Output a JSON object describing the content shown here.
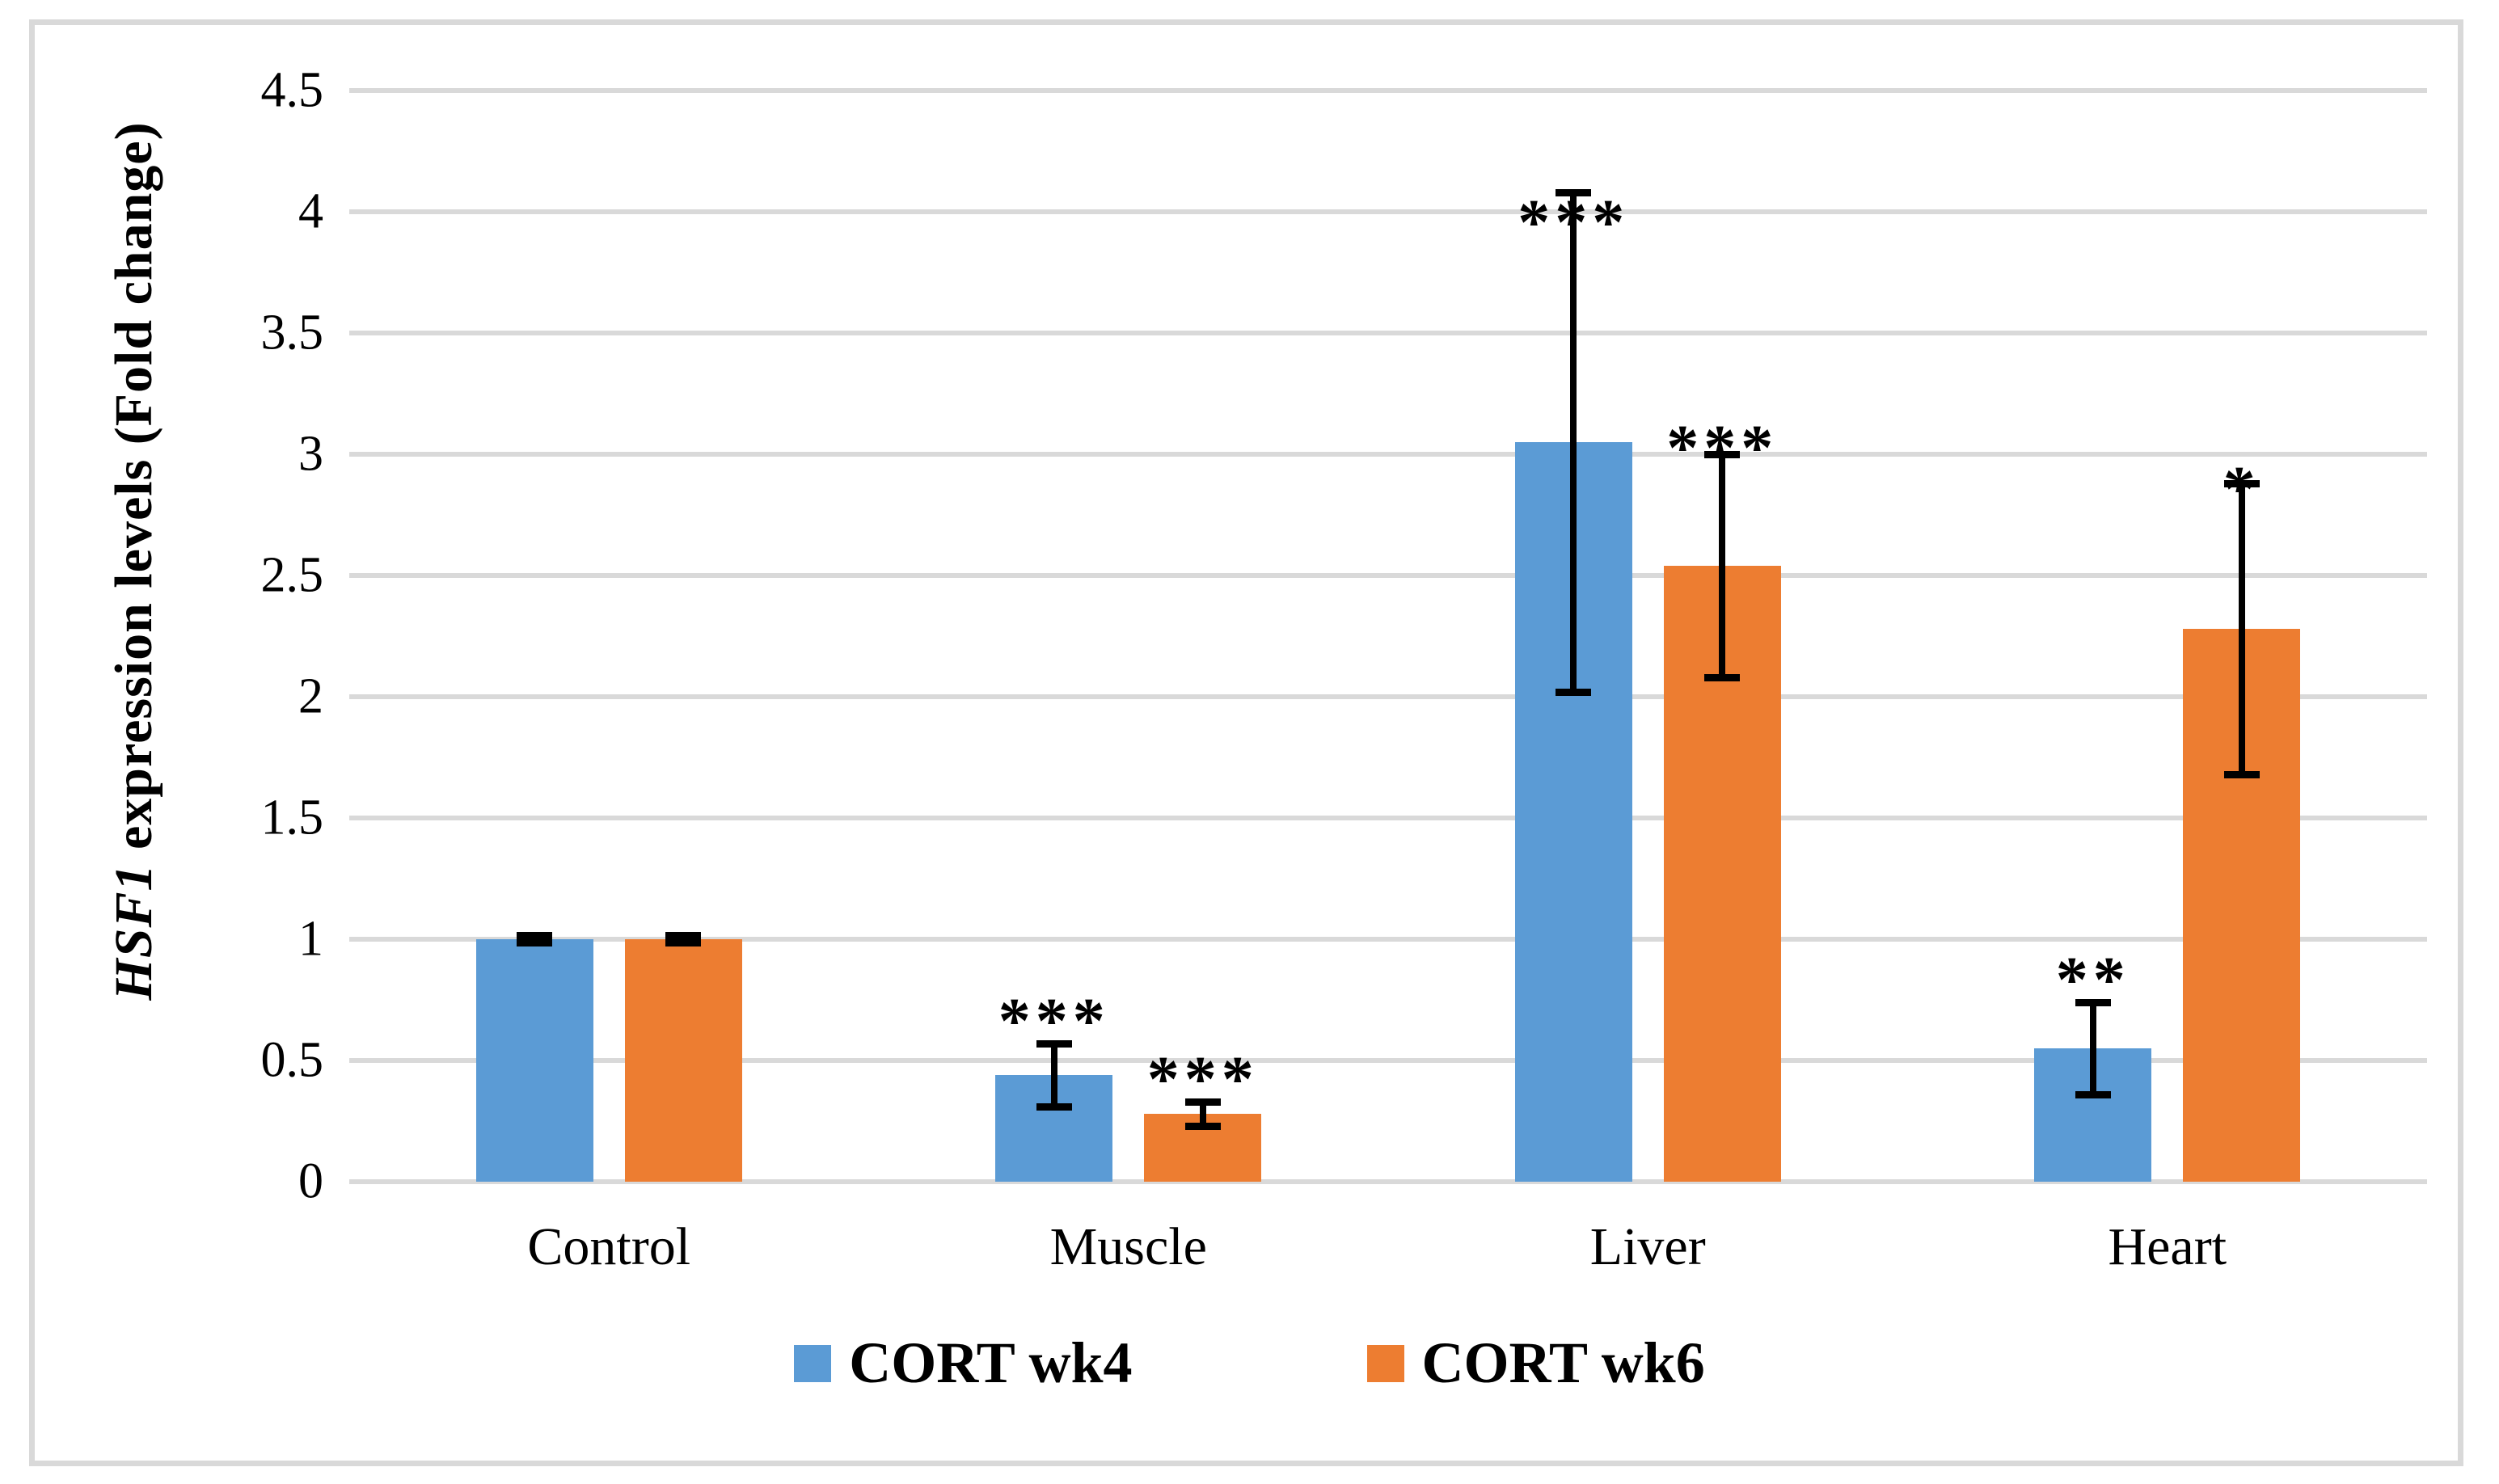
{
  "chart_data": {
    "type": "bar",
    "title": "",
    "ylabel_italic": "HSF1",
    "ylabel_rest": " expression levels  (Fold change)",
    "xlabel": "",
    "categories": [
      "Control",
      "Muscle",
      "Liver",
      "Heart"
    ],
    "y_ticks": [
      "0",
      "0.5",
      "1",
      "1.5",
      "2",
      "2.5",
      "3",
      "3.5",
      "4",
      "4.5"
    ],
    "ylim": [
      0,
      4.5
    ],
    "grid": true,
    "legend_position": "bottom",
    "series": [
      {
        "name": "CORT wk4",
        "color": "#5B9BD5",
        "values": [
          1.0,
          0.44,
          3.05,
          0.55
        ],
        "errors": [
          0.015,
          0.13,
          1.03,
          0.19
        ],
        "sig": [
          "",
          "***",
          "***",
          "**"
        ],
        "sig_dy": [
          0,
          0,
          65,
          0
        ]
      },
      {
        "name": "CORT wk6",
        "color": "#ED7D31",
        "values": [
          1.0,
          0.28,
          2.54,
          2.28
        ],
        "errors": [
          0.015,
          0.05,
          0.46,
          0.6
        ],
        "sig": [
          "",
          "***",
          "***",
          "*"
        ],
        "sig_dy": [
          0,
          0,
          20,
          35
        ]
      }
    ],
    "error_bar_color": "#000000"
  },
  "colors": {
    "grid": "#D9D9D9",
    "frame_border": "#D9D9D9",
    "background": "#FFFFFF",
    "text": "#000000",
    "series_blue": "#5B9BD5",
    "series_orange": "#ED7D31"
  }
}
